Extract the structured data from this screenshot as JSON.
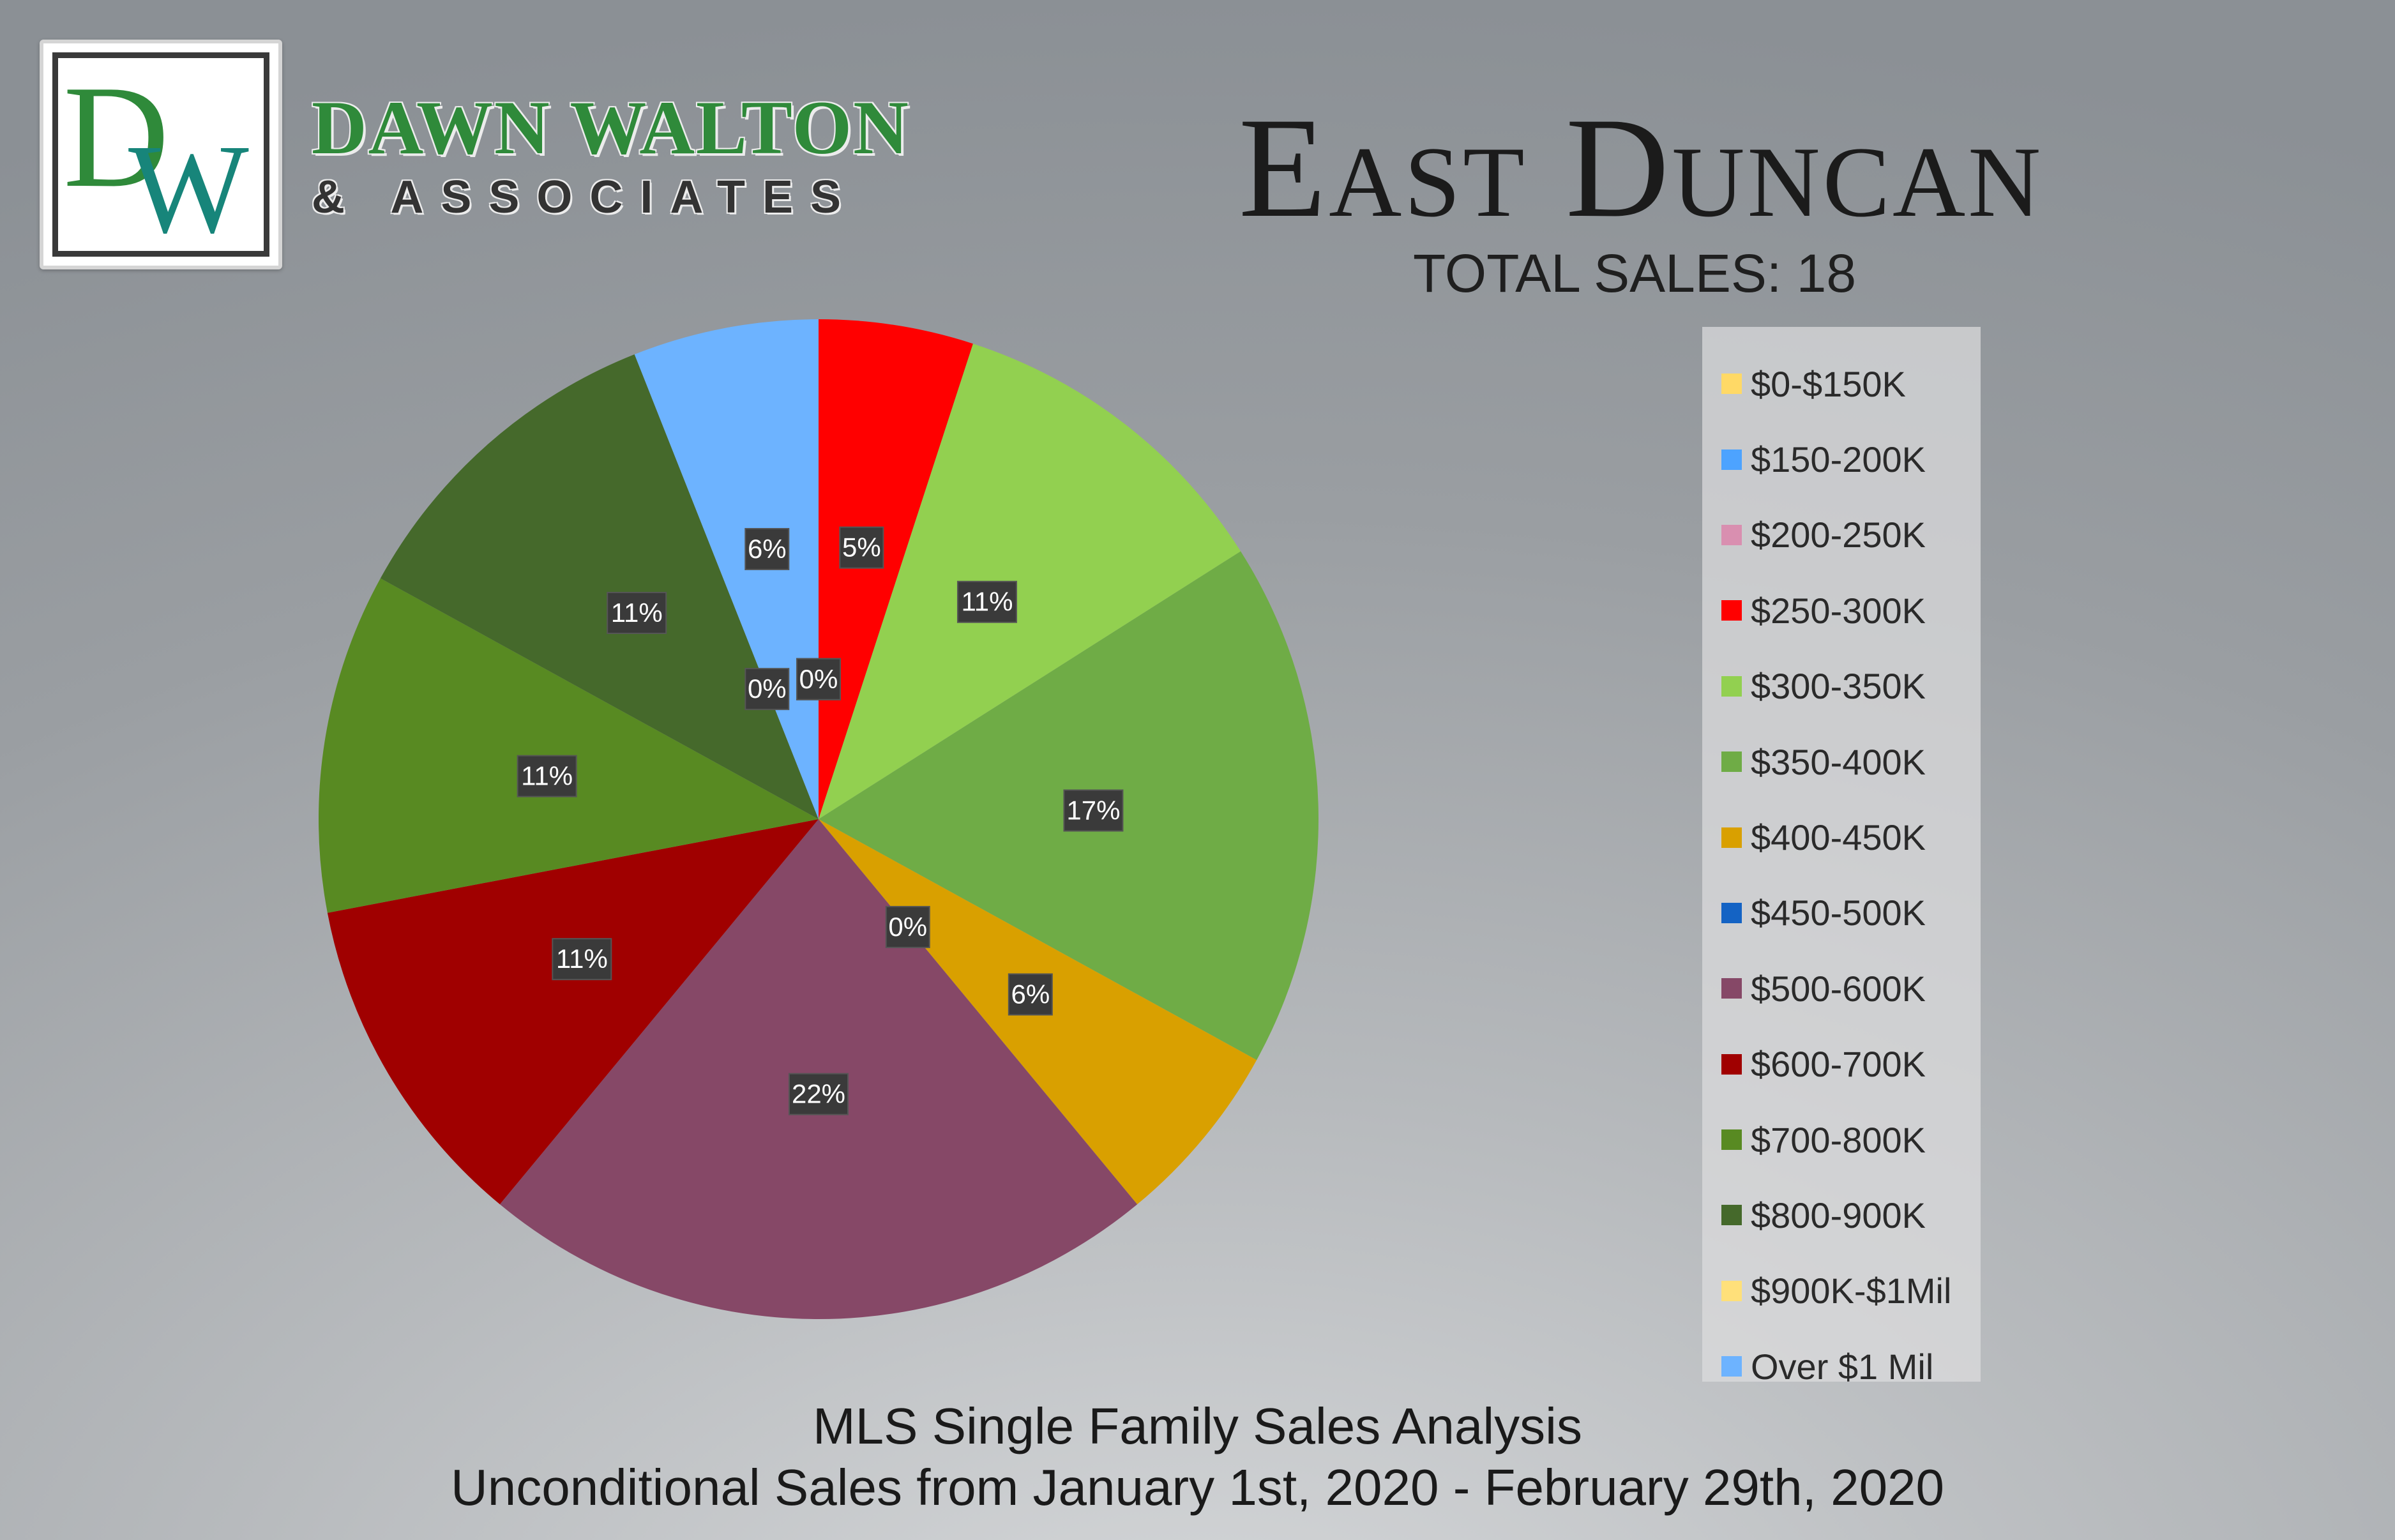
{
  "logo": {
    "monogram_d": "D",
    "monogram_w": "W",
    "name": "DAWN WALTON",
    "subtitle": "& ASSOCIATES"
  },
  "header": {
    "title": "East Duncan",
    "total_sales": "TOTAL SALES: 18"
  },
  "footer": {
    "line1": "MLS Single Family Sales Analysis",
    "line2": "Unconditional Sales from January 1st, 2020 - February 29th, 2020"
  },
  "colors": {
    "logo_green": "#2f8a3a",
    "logo_teal": "#17857a",
    "label_box": "#3a3a3a"
  },
  "chart_data": {
    "type": "pie",
    "unit": "%",
    "legend_position": "right",
    "slices": [
      {
        "label": "$0-$150K",
        "value": 0,
        "display": "0%",
        "color": "#ffd966"
      },
      {
        "label": "$150-200K",
        "value": 0,
        "display": "0%",
        "color": "#4da3ff"
      },
      {
        "label": "$200-250K",
        "value": 0,
        "display": "0%",
        "color": "#d98fb0"
      },
      {
        "label": "$250-300K",
        "value": 5,
        "display": "5%",
        "color": "#ff0000"
      },
      {
        "label": "$300-350K",
        "value": 11,
        "display": "11%",
        "color": "#92d050"
      },
      {
        "label": "$350-400K",
        "value": 17,
        "display": "17%",
        "color": "#6fac46"
      },
      {
        "label": "$400-450K",
        "value": 6,
        "display": "6%",
        "color": "#d9a000"
      },
      {
        "label": "$450-500K",
        "value": 0,
        "display": "0%",
        "color": "#1463c4"
      },
      {
        "label": "$500-600K",
        "value": 22,
        "display": "22%",
        "color": "#864867"
      },
      {
        "label": "$600-700K",
        "value": 11,
        "display": "11%",
        "color": "#a00000"
      },
      {
        "label": "$700-800K",
        "value": 11,
        "display": "11%",
        "color": "#588a22"
      },
      {
        "label": "$800-900K",
        "value": 11,
        "display": "11%",
        "color": "#45692b"
      },
      {
        "label": "$900K-$1Mil",
        "value": 0,
        "display": "0%",
        "color": "#ffe07a"
      },
      {
        "label": "Over $1 Mil",
        "value": 6,
        "display": "6%",
        "color": "#6db3ff"
      }
    ]
  }
}
